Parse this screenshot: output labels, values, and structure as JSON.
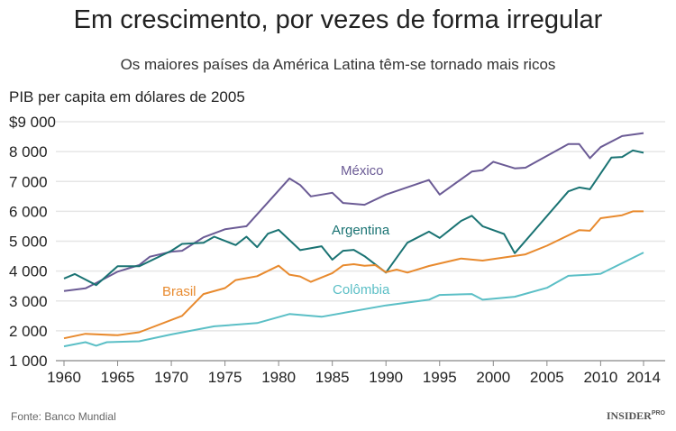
{
  "title": "Em crescimento, por vezes de forma irregular",
  "subtitle": "Os maiores países da América Latina têm-se tornado mais ricos",
  "source": "Fonte: Banco Mundial",
  "logo": "INSIDER PRO",
  "chart_data": {
    "type": "line",
    "ylabel": "PIB per capita em dólares de 2005",
    "xlim": [
      1960,
      2014
    ],
    "ylim": [
      1000,
      9000
    ],
    "grid": true,
    "x_ticks": [
      "1960",
      "1965",
      "1970",
      "1975",
      "1980",
      "1985",
      "1990",
      "1995",
      "2000",
      "2005",
      "2010",
      "2014"
    ],
    "y_ticks": [
      "$9 000",
      "8 000",
      "7 000",
      "6 000",
      "5 000",
      "4 000",
      "3 000",
      "2 000",
      "1 000"
    ],
    "series": [
      {
        "name": "México",
        "color": "#6b5b95",
        "points": [
          [
            1960,
            3330
          ],
          [
            1962,
            3420
          ],
          [
            1963,
            3600
          ],
          [
            1965,
            3980
          ],
          [
            1967,
            4200
          ],
          [
            1968,
            4480
          ],
          [
            1970,
            4650
          ],
          [
            1971,
            4680
          ],
          [
            1973,
            5130
          ],
          [
            1975,
            5400
          ],
          [
            1977,
            5500
          ],
          [
            1981,
            7100
          ],
          [
            1982,
            6880
          ],
          [
            1983,
            6500
          ],
          [
            1985,
            6620
          ],
          [
            1986,
            6280
          ],
          [
            1988,
            6220
          ],
          [
            1990,
            6560
          ],
          [
            1994,
            7050
          ],
          [
            1995,
            6560
          ],
          [
            1998,
            7330
          ],
          [
            1999,
            7380
          ],
          [
            2000,
            7660
          ],
          [
            2002,
            7440
          ],
          [
            2003,
            7460
          ],
          [
            2007,
            8250
          ],
          [
            2008,
            8250
          ],
          [
            2009,
            7780
          ],
          [
            2010,
            8150
          ],
          [
            2012,
            8520
          ],
          [
            2014,
            8620
          ]
        ]
      },
      {
        "name": "Argentina",
        "color": "#1a7373",
        "points": [
          [
            1960,
            3750
          ],
          [
            1961,
            3900
          ],
          [
            1963,
            3530
          ],
          [
            1965,
            4160
          ],
          [
            1967,
            4160
          ],
          [
            1970,
            4680
          ],
          [
            1971,
            4910
          ],
          [
            1973,
            4950
          ],
          [
            1974,
            5150
          ],
          [
            1976,
            4870
          ],
          [
            1977,
            5150
          ],
          [
            1978,
            4800
          ],
          [
            1979,
            5250
          ],
          [
            1980,
            5380
          ],
          [
            1982,
            4700
          ],
          [
            1984,
            4830
          ],
          [
            1985,
            4380
          ],
          [
            1986,
            4680
          ],
          [
            1987,
            4710
          ],
          [
            1988,
            4500
          ],
          [
            1990,
            3950
          ],
          [
            1992,
            4950
          ],
          [
            1994,
            5320
          ],
          [
            1995,
            5110
          ],
          [
            1997,
            5680
          ],
          [
            1998,
            5850
          ],
          [
            1999,
            5500
          ],
          [
            2001,
            5240
          ],
          [
            2002,
            4600
          ],
          [
            2007,
            6670
          ],
          [
            2008,
            6800
          ],
          [
            2009,
            6740
          ],
          [
            2011,
            7800
          ],
          [
            2012,
            7820
          ],
          [
            2013,
            8040
          ],
          [
            2014,
            7960
          ]
        ]
      },
      {
        "name": "Brasil",
        "color": "#e88a2e",
        "points": [
          [
            1960,
            1750
          ],
          [
            1962,
            1900
          ],
          [
            1965,
            1850
          ],
          [
            1967,
            1950
          ],
          [
            1971,
            2500
          ],
          [
            1973,
            3230
          ],
          [
            1975,
            3430
          ],
          [
            1976,
            3700
          ],
          [
            1978,
            3830
          ],
          [
            1980,
            4180
          ],
          [
            1981,
            3880
          ],
          [
            1982,
            3820
          ],
          [
            1983,
            3640
          ],
          [
            1985,
            3930
          ],
          [
            1986,
            4190
          ],
          [
            1987,
            4230
          ],
          [
            1988,
            4180
          ],
          [
            1989,
            4200
          ],
          [
            1990,
            3960
          ],
          [
            1991,
            4050
          ],
          [
            1992,
            3950
          ],
          [
            1994,
            4170
          ],
          [
            1997,
            4420
          ],
          [
            1999,
            4350
          ],
          [
            2003,
            4560
          ],
          [
            2005,
            4850
          ],
          [
            2008,
            5370
          ],
          [
            2009,
            5350
          ],
          [
            2010,
            5770
          ],
          [
            2012,
            5870
          ],
          [
            2013,
            6000
          ],
          [
            2014,
            6000
          ]
        ]
      },
      {
        "name": "Colômbia",
        "color": "#5bbfc6",
        "points": [
          [
            1960,
            1480
          ],
          [
            1962,
            1620
          ],
          [
            1963,
            1500
          ],
          [
            1964,
            1620
          ],
          [
            1967,
            1650
          ],
          [
            1970,
            1880
          ],
          [
            1974,
            2150
          ],
          [
            1978,
            2260
          ],
          [
            1981,
            2560
          ],
          [
            1984,
            2470
          ],
          [
            1990,
            2850
          ],
          [
            1994,
            3040
          ],
          [
            1995,
            3200
          ],
          [
            1998,
            3230
          ],
          [
            1999,
            3040
          ],
          [
            2002,
            3140
          ],
          [
            2005,
            3440
          ],
          [
            2007,
            3840
          ],
          [
            2009,
            3880
          ],
          [
            2010,
            3910
          ],
          [
            2014,
            4620
          ]
        ]
      }
    ]
  }
}
